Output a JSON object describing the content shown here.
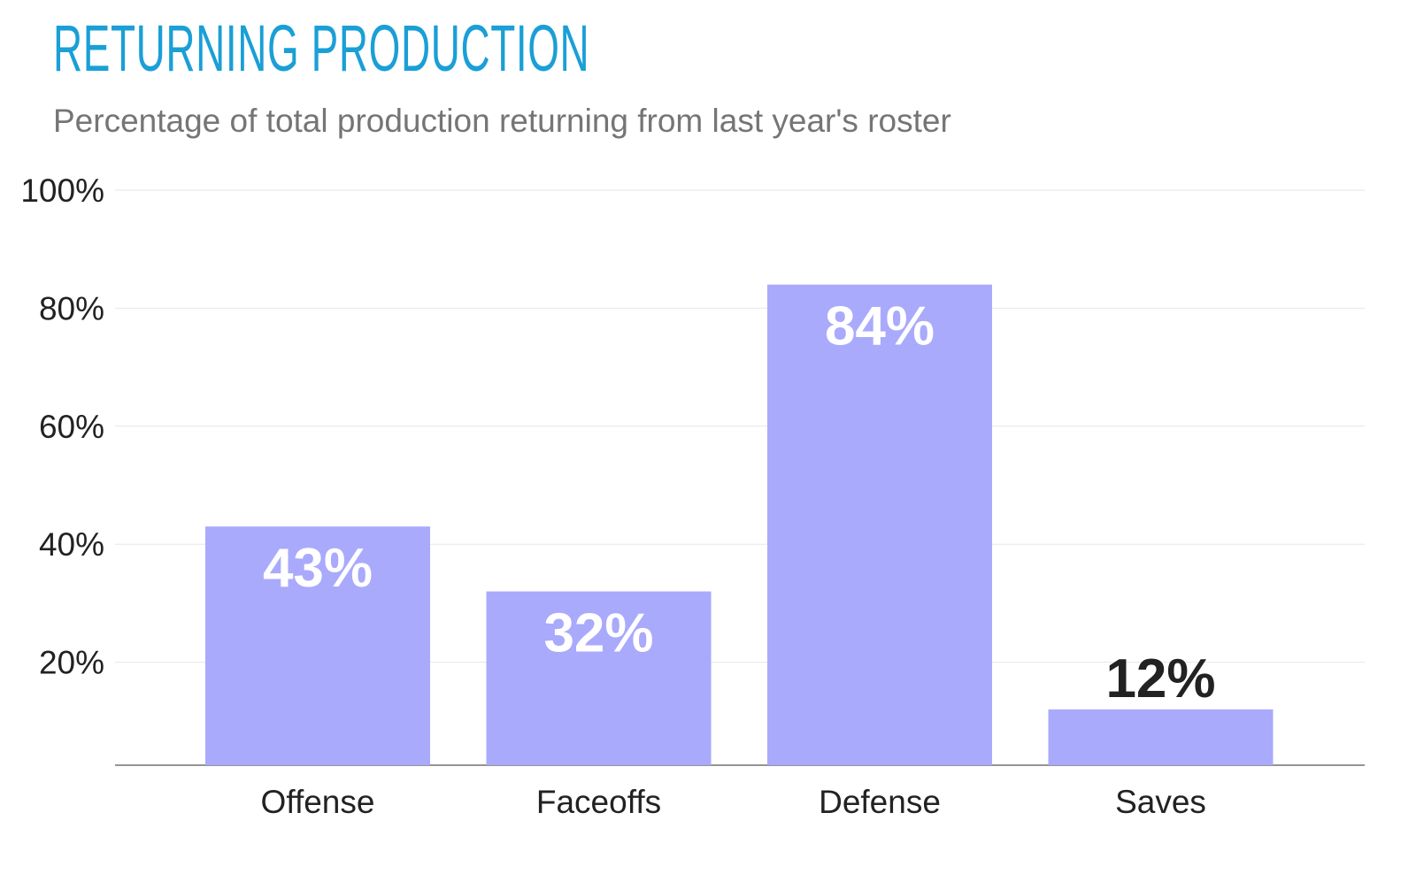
{
  "chart_data": {
    "type": "bar",
    "title": "RETURNING PRODUCTION",
    "subtitle": "Percentage of total production returning from last year's roster",
    "categories": [
      "Offense",
      "Faceoffs",
      "Defense",
      "Saves"
    ],
    "values": [
      43,
      32,
      84,
      12
    ],
    "data_labels": [
      "43%",
      "32%",
      "84%",
      "12%"
    ],
    "yticks": [
      20,
      40,
      60,
      80,
      100
    ],
    "ytick_labels": [
      "20%",
      "40%",
      "60%",
      "80%",
      "100%"
    ],
    "ylim": [
      0,
      100
    ],
    "xlabel": "",
    "ylabel": "",
    "grid": true,
    "legend": "none",
    "colors": {
      "bar": "#a9aafc",
      "title": "#1a9fd6",
      "label_inside": "#ffffff",
      "label_outside": "#222222"
    }
  }
}
